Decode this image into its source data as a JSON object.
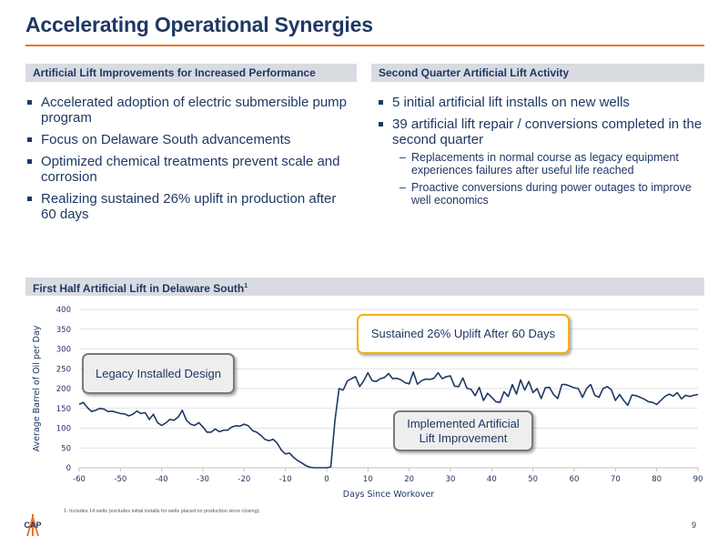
{
  "page": {
    "title": "Accelerating Operational Synergies",
    "page_number": "9",
    "footnote": "1.   Includes 14 wells (excludes initial installs for wells placed on production since closing).",
    "logo_text": "CAP"
  },
  "left_panel": {
    "header": "Artificial Lift Improvements for Increased Performance",
    "bullets": [
      "Accelerated adoption of electric submersible pump program",
      "Focus on Delaware South advancements",
      "Optimized chemical treatments prevent scale and corrosion",
      "Realizing sustained 26% uplift in production after 60 days"
    ]
  },
  "right_panel": {
    "header": "Second Quarter Artificial Lift Activity",
    "bullets": [
      "5 initial artificial lift installs on new wells",
      "39 artificial lift repair / conversions completed in the second quarter"
    ],
    "sub_bullets": [
      "Replacements in normal course as legacy equipment experiences failures after useful life reached",
      "Proactive conversions during power outages to improve well economics"
    ],
    "sub_bullet_marker": "–"
  },
  "chart_section": {
    "header": "First Half Artificial Lift in Delaware South",
    "header_sup": "1",
    "callouts": {
      "legacy": "Legacy Installed Design",
      "sustained": "Sustained 26% Uplift After 60 Days",
      "implemented_line1": "Implemented Artificial",
      "implemented_line2": "Lift Improvement"
    }
  },
  "colors": {
    "title": "#1f3864",
    "accent_rule": "#e8742a",
    "line": "#1f3864",
    "gold_border": "#f2b400",
    "gray_border": "#7a7a7a"
  },
  "chart_data": {
    "type": "line",
    "title": "",
    "xlabel": "Days Since Workover",
    "ylabel": "Average Barrel of Oil per Day",
    "xlim": [
      -60,
      90
    ],
    "ylim": [
      0,
      400
    ],
    "x_ticks": [
      -60,
      -50,
      -40,
      -30,
      -20,
      -10,
      0,
      10,
      20,
      30,
      40,
      50,
      60,
      70,
      80,
      90
    ],
    "y_ticks": [
      0,
      50,
      100,
      150,
      200,
      250,
      300,
      350,
      400
    ],
    "grid": "horizontal",
    "series": [
      {
        "color": "#1f3864",
        "points": [
          [
            -60,
            160
          ],
          [
            -59,
            165
          ],
          [
            -58,
            152
          ],
          [
            -57,
            142
          ],
          [
            -56,
            145
          ],
          [
            -55,
            150
          ],
          [
            -54,
            148
          ],
          [
            -53,
            142
          ],
          [
            -52,
            143
          ],
          [
            -51,
            140
          ],
          [
            -50,
            137
          ],
          [
            -49,
            136
          ],
          [
            -48,
            131
          ],
          [
            -47,
            135
          ],
          [
            -46,
            143
          ],
          [
            -45,
            137
          ],
          [
            -44,
            139
          ],
          [
            -43,
            122
          ],
          [
            -42,
            135
          ],
          [
            -41,
            114
          ],
          [
            -40,
            107
          ],
          [
            -39,
            113
          ],
          [
            -38,
            122
          ],
          [
            -37,
            120
          ],
          [
            -36,
            128
          ],
          [
            -35,
            145
          ],
          [
            -34,
            120
          ],
          [
            -33,
            110
          ],
          [
            -32,
            107
          ],
          [
            -31,
            114
          ],
          [
            -30,
            103
          ],
          [
            -29,
            90
          ],
          [
            -28,
            90
          ],
          [
            -27,
            98
          ],
          [
            -26,
            91
          ],
          [
            -25,
            95
          ],
          [
            -24,
            95
          ],
          [
            -23,
            103
          ],
          [
            -22,
            106
          ],
          [
            -21,
            105
          ],
          [
            -20,
            110
          ],
          [
            -19,
            106
          ],
          [
            -18,
            94
          ],
          [
            -17,
            90
          ],
          [
            -16,
            82
          ],
          [
            -15,
            72
          ],
          [
            -14,
            68
          ],
          [
            -13,
            72
          ],
          [
            -12,
            62
          ],
          [
            -11,
            45
          ],
          [
            -10,
            35
          ],
          [
            -9,
            37
          ],
          [
            -8,
            26
          ],
          [
            -7,
            18
          ],
          [
            -6,
            12
          ],
          [
            -5,
            5
          ],
          [
            -4,
            1
          ],
          [
            -3,
            0
          ],
          [
            -2,
            0
          ],
          [
            -1,
            0
          ],
          [
            0,
            0
          ],
          [
            1,
            2
          ],
          [
            2,
            120
          ],
          [
            3,
            200
          ],
          [
            4,
            196
          ],
          [
            5,
            219
          ],
          [
            6,
            225
          ],
          [
            7,
            230
          ],
          [
            8,
            205
          ],
          [
            9,
            220
          ],
          [
            10,
            240
          ],
          [
            11,
            220
          ],
          [
            12,
            218
          ],
          [
            13,
            225
          ],
          [
            14,
            228
          ],
          [
            15,
            238
          ],
          [
            16,
            225
          ],
          [
            17,
            226
          ],
          [
            18,
            222
          ],
          [
            19,
            215
          ],
          [
            20,
            212
          ],
          [
            21,
            242
          ],
          [
            22,
            211
          ],
          [
            23,
            220
          ],
          [
            24,
            224
          ],
          [
            25,
            223
          ],
          [
            26,
            226
          ],
          [
            27,
            240
          ],
          [
            28,
            225
          ],
          [
            29,
            230
          ],
          [
            30,
            232
          ],
          [
            31,
            206
          ],
          [
            32,
            205
          ],
          [
            33,
            227
          ],
          [
            34,
            201
          ],
          [
            35,
            198
          ],
          [
            36,
            182
          ],
          [
            37,
            203
          ],
          [
            38,
            170
          ],
          [
            39,
            188
          ],
          [
            40,
            178
          ],
          [
            41,
            167
          ],
          [
            42,
            165
          ],
          [
            43,
            192
          ],
          [
            44,
            180
          ],
          [
            45,
            210
          ],
          [
            46,
            186
          ],
          [
            47,
            222
          ],
          [
            48,
            196
          ],
          [
            49,
            218
          ],
          [
            50,
            190
          ],
          [
            51,
            200
          ],
          [
            52,
            175
          ],
          [
            53,
            202
          ],
          [
            54,
            203
          ],
          [
            55,
            185
          ],
          [
            56,
            175
          ],
          [
            57,
            210
          ],
          [
            58,
            210
          ],
          [
            59,
            206
          ],
          [
            60,
            202
          ],
          [
            61,
            200
          ],
          [
            62,
            178
          ],
          [
            63,
            200
          ],
          [
            64,
            210
          ],
          [
            65,
            183
          ],
          [
            66,
            178
          ],
          [
            67,
            200
          ],
          [
            68,
            205
          ],
          [
            69,
            197
          ],
          [
            70,
            170
          ],
          [
            71,
            185
          ],
          [
            72,
            170
          ],
          [
            73,
            158
          ],
          [
            74,
            184
          ],
          [
            75,
            182
          ],
          [
            76,
            178
          ],
          [
            77,
            173
          ],
          [
            78,
            167
          ],
          [
            79,
            165
          ],
          [
            80,
            160
          ],
          [
            81,
            170
          ],
          [
            82,
            180
          ],
          [
            83,
            186
          ],
          [
            84,
            181
          ],
          [
            85,
            190
          ],
          [
            86,
            174
          ],
          [
            87,
            183
          ],
          [
            88,
            180
          ],
          [
            89,
            183
          ],
          [
            90,
            185
          ]
        ]
      }
    ]
  }
}
